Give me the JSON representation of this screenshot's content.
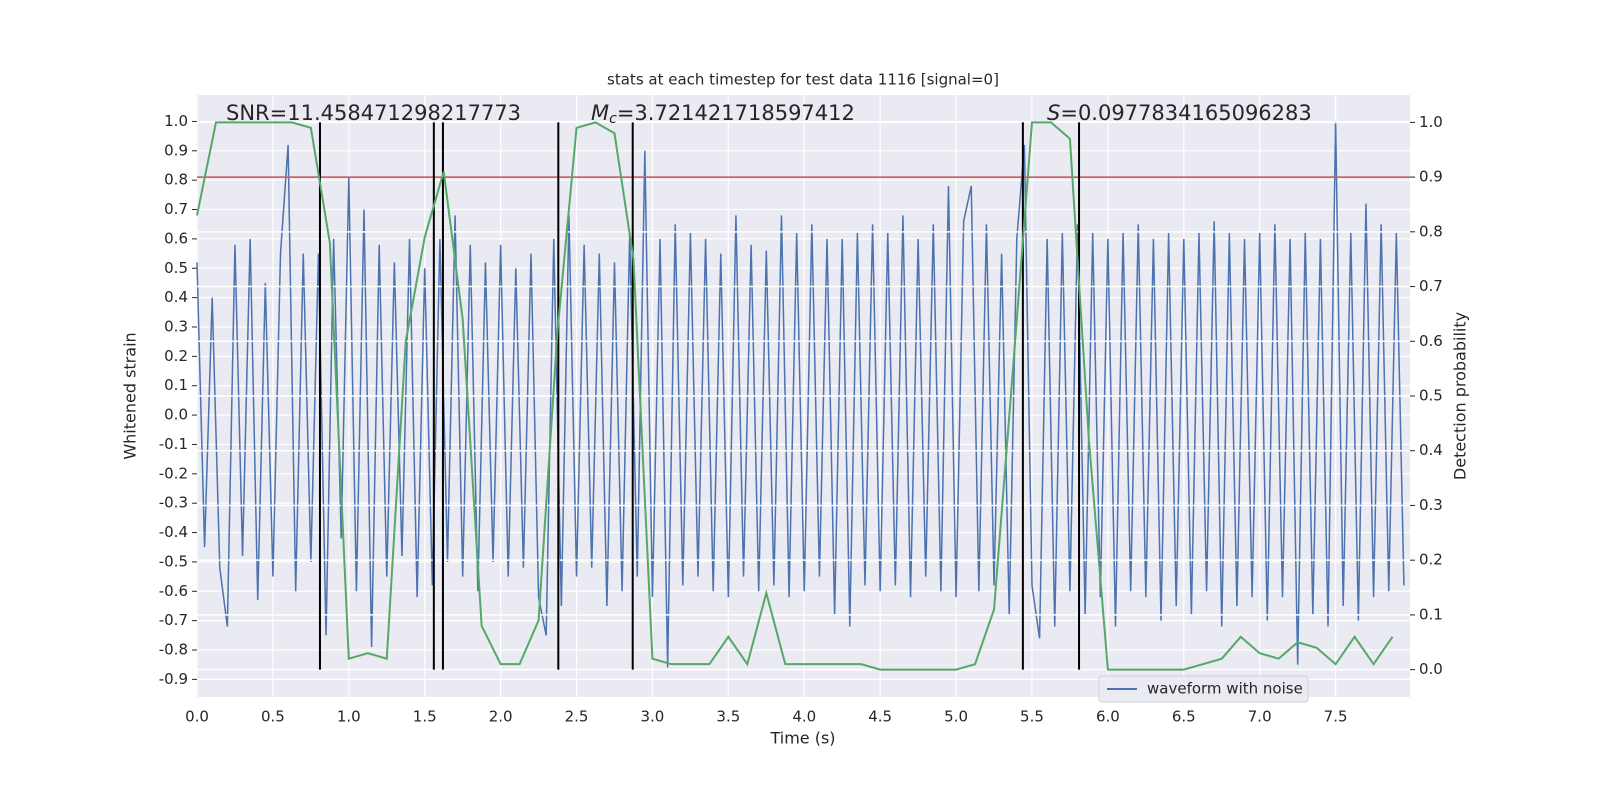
{
  "chart_data": {
    "type": "line",
    "title": "stats at each timestep for test data 1116 [signal=0]",
    "xlabel": "Time (s)",
    "ylabel": "Whitened strain",
    "y2label": "Detection probability",
    "annotations": [
      {
        "text": "SNR=11.458471298217773"
      },
      {
        "symbol": "M",
        "subscript": "c",
        "text": "=3.721421718597412"
      },
      {
        "symbol": "S",
        "text": "=0.0977834165096283"
      }
    ],
    "xlim": [
      0,
      7.99
    ],
    "ylim": [
      -0.96,
      1.09
    ],
    "y2lim": [
      -0.05,
      1.05
    ],
    "xticks": [
      {
        "value": 0,
        "label": "0.0"
      },
      0.5,
      {
        "value": 1,
        "label": "1.0"
      },
      1.5,
      {
        "value": 2,
        "label": "2.0"
      },
      2.5,
      {
        "value": 3,
        "label": "3.0"
      },
      3.5,
      {
        "value": 4,
        "label": "4.0"
      },
      4.5,
      {
        "value": 5,
        "label": "5.0"
      },
      5.5,
      {
        "value": 6,
        "label": "6.0"
      },
      6.5,
      {
        "value": 7,
        "label": "7.0"
      },
      7.5
    ],
    "yticks": [
      -0.9,
      -0.8,
      -0.7,
      -0.6,
      -0.5,
      -0.4,
      -0.3,
      -0.2,
      -0.1,
      {
        "value": 0,
        "label": "0.0"
      },
      0.1,
      0.2,
      0.3,
      0.4,
      0.5,
      0.6,
      0.7,
      0.8,
      0.9,
      {
        "value": 1,
        "label": "1.0"
      }
    ],
    "y2ticks": [
      {
        "value": 0,
        "label": "0.0"
      },
      0.1,
      0.2,
      0.3,
      0.4,
      0.5,
      0.6,
      0.7,
      0.8,
      0.9,
      {
        "value": 1,
        "label": "1.0"
      }
    ],
    "grid": true,
    "legend": "lower right",
    "threshold": 0.9,
    "threshold_color": "#c44e52",
    "vlines": [
      0.81,
      1.56,
      1.62,
      2.38,
      2.87,
      5.44,
      5.81
    ],
    "vline_color": "#000000",
    "series": [
      {
        "name": "waveform with noise",
        "color": "#4c72b0",
        "axis": "y",
        "x": [
          0,
          0.05,
          0.1,
          0.15,
          0.2,
          0.25,
          0.3,
          0.35,
          0.4,
          0.45,
          0.5,
          0.55,
          0.6,
          0.65,
          0.7,
          0.75,
          0.8,
          0.85,
          0.9,
          0.95,
          1,
          1.05,
          1.1,
          1.15,
          1.2,
          1.25,
          1.3,
          1.35,
          1.4,
          1.45,
          1.5,
          1.55,
          1.6,
          1.65,
          1.7,
          1.75,
          1.8,
          1.85,
          1.9,
          1.95,
          2,
          2.05,
          2.1,
          2.15,
          2.2,
          2.25,
          2.3,
          2.35,
          2.4,
          2.45,
          2.5,
          2.55,
          2.6,
          2.65,
          2.7,
          2.75,
          2.8,
          2.85,
          2.9,
          2.95,
          3,
          3.05,
          3.1,
          3.15,
          3.2,
          3.25,
          3.3,
          3.35,
          3.4,
          3.45,
          3.5,
          3.55,
          3.6,
          3.65,
          3.7,
          3.75,
          3.8,
          3.85,
          3.9,
          3.95,
          4,
          4.05,
          4.1,
          4.15,
          4.2,
          4.25,
          4.3,
          4.35,
          4.4,
          4.45,
          4.5,
          4.55,
          4.6,
          4.65,
          4.7,
          4.75,
          4.8,
          4.85,
          4.9,
          4.95,
          5,
          5.05,
          5.1,
          5.15,
          5.2,
          5.25,
          5.3,
          5.35,
          5.4,
          5.45,
          5.5,
          5.55,
          5.6,
          5.65,
          5.7,
          5.75,
          5.8,
          5.85,
          5.9,
          5.95,
          6,
          6.05,
          6.1,
          6.15,
          6.2,
          6.25,
          6.3,
          6.35,
          6.4,
          6.45,
          6.5,
          6.55,
          6.6,
          6.65,
          6.7,
          6.75,
          6.8,
          6.85,
          6.9,
          6.95,
          7,
          7.05,
          7.1,
          7.15,
          7.2,
          7.25,
          7.3,
          7.35,
          7.4,
          7.45,
          7.5,
          7.55,
          7.6,
          7.65,
          7.7,
          7.75,
          7.8,
          7.85,
          7.9,
          7.95
        ],
        "values": [
          0.52,
          -0.45,
          0.4,
          -0.52,
          -0.72,
          0.58,
          -0.48,
          0.6,
          -0.63,
          0.45,
          -0.55,
          0.55,
          0.92,
          -0.6,
          0.55,
          -0.5,
          0.55,
          -0.75,
          0.6,
          -0.42,
          0.81,
          -0.6,
          0.7,
          -0.79,
          0.58,
          -0.55,
          0.52,
          -0.48,
          0.6,
          -0.62,
          0.5,
          -0.58,
          0.6,
          -0.5,
          0.68,
          -0.55,
          0.58,
          -0.6,
          0.52,
          -0.5,
          0.58,
          -0.55,
          0.5,
          -0.52,
          0.55,
          -0.62,
          -0.75,
          0.6,
          -0.65,
          0.68,
          -0.55,
          0.58,
          -0.52,
          0.55,
          -0.65,
          0.52,
          -0.6,
          0.62,
          -0.55,
          0.9,
          -0.62,
          0.6,
          -0.86,
          0.65,
          -0.58,
          0.62,
          -0.55,
          0.6,
          -0.6,
          0.55,
          -0.62,
          0.68,
          -0.55,
          0.58,
          -0.6,
          0.56,
          -0.58,
          0.68,
          -0.62,
          0.62,
          -0.6,
          0.65,
          -0.55,
          0.6,
          -0.68,
          0.6,
          -0.72,
          0.62,
          -0.58,
          0.65,
          -0.6,
          0.62,
          -0.58,
          0.68,
          -0.62,
          0.6,
          -0.55,
          0.65,
          -0.6,
          0.78,
          -0.62,
          0.66,
          0.78,
          -0.6,
          0.65,
          -0.58,
          0.55,
          -0.68,
          0.6,
          0.92,
          -0.58,
          -0.76,
          0.6,
          -0.72,
          0.62,
          -0.6,
          0.65,
          -0.68,
          0.62,
          -0.62,
          0.6,
          -0.72,
          0.62,
          -0.6,
          0.65,
          -0.62,
          0.6,
          -0.7,
          0.62,
          -0.65,
          0.6,
          -0.68,
          0.62,
          -0.6,
          0.66,
          -0.72,
          0.62,
          -0.65,
          0.6,
          -0.62,
          0.62,
          -0.7,
          0.65,
          -0.62,
          0.6,
          -0.85,
          0.62,
          -0.68,
          0.6,
          -0.72,
          1,
          -0.65,
          0.62,
          -0.7,
          0.72,
          -0.62,
          0.65,
          -0.6,
          0.62,
          -0.58
        ]
      },
      {
        "color": "#55a868",
        "axis": "y2",
        "x": [
          0,
          0.125,
          0.25,
          0.375,
          0.5,
          0.625,
          0.75,
          0.875,
          1,
          1.125,
          1.25,
          1.375,
          1.5,
          1.625,
          1.75,
          1.875,
          2,
          2.125,
          2.25,
          2.375,
          2.5,
          2.625,
          2.75,
          2.875,
          3,
          3.125,
          3.25,
          3.375,
          3.5,
          3.625,
          3.75,
          3.875,
          4,
          4.125,
          4.25,
          4.375,
          4.5,
          4.625,
          4.75,
          4.875,
          5,
          5.125,
          5.25,
          5.375,
          5.5,
          5.625,
          5.75,
          5.875,
          6,
          6.125,
          6.25,
          6.375,
          6.5,
          6.625,
          6.75,
          6.875,
          7,
          7.125,
          7.25,
          7.375,
          7.5,
          7.625,
          7.75,
          7.875
        ],
        "values": [
          0.83,
          1,
          1,
          1,
          1,
          1,
          0.99,
          0.78,
          0.02,
          0.03,
          0.02,
          0.6,
          0.79,
          0.91,
          0.64,
          0.08,
          0.01,
          0.01,
          0.09,
          0.62,
          0.99,
          1,
          0.98,
          0.75,
          0.02,
          0.01,
          0.01,
          0.01,
          0.06,
          0.01,
          0.14,
          0.01,
          0.01,
          0.01,
          0.01,
          0.01,
          0,
          0,
          0,
          0,
          0,
          0.01,
          0.11,
          0.55,
          1,
          1,
          0.97,
          0.42,
          0,
          0,
          0,
          0,
          0,
          0.01,
          0.02,
          0.06,
          0.03,
          0.02,
          0.05,
          0.04,
          0.01,
          0.06,
          0.01,
          0.06
        ]
      }
    ]
  }
}
